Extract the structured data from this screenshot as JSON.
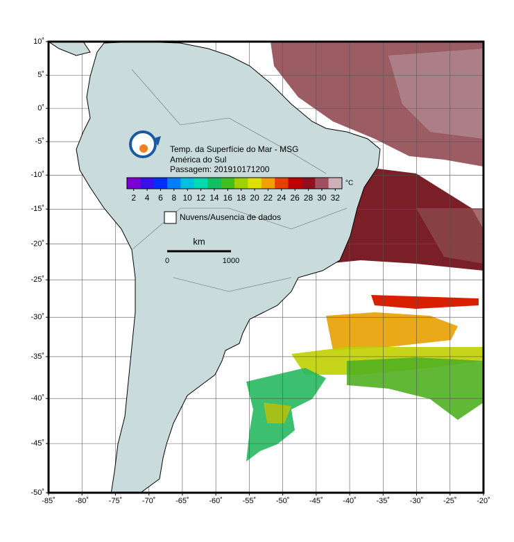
{
  "map": {
    "type": "map",
    "title_lines": [
      "Temp. da Superfície do Mar - MSG",
      "América do Sul",
      "Passagem: 201910171200"
    ],
    "xlim": [
      -85,
      -20
    ],
    "ylim": [
      -50,
      10
    ],
    "xticks": [
      {
        "value": -85,
        "label": "-85˚"
      },
      {
        "value": -80,
        "label": "-80˚"
      },
      {
        "value": -75,
        "label": "-75˚"
      },
      {
        "value": -70,
        "label": "-70˚"
      },
      {
        "value": -65,
        "label": "-65˚"
      },
      {
        "value": -60,
        "label": "-60˚"
      },
      {
        "value": -55,
        "label": "-55˚"
      },
      {
        "value": -50,
        "label": "-50˚"
      },
      {
        "value": -45,
        "label": "-45˚"
      },
      {
        "value": -40,
        "label": "-40˚"
      },
      {
        "value": -35,
        "label": "-35˚"
      },
      {
        "value": -30,
        "label": "-30˚"
      },
      {
        "value": -25,
        "label": "-25˚"
      },
      {
        "value": -20,
        "label": "-20˚"
      }
    ],
    "yticks": [
      {
        "value": 10,
        "label": "10˚"
      },
      {
        "value": 5,
        "label": "5˚"
      },
      {
        "value": 0,
        "label": "0˚"
      },
      {
        "value": -5,
        "label": "-5˚"
      },
      {
        "value": -10,
        "label": "-10˚"
      },
      {
        "value": -15,
        "label": "-15˚"
      },
      {
        "value": -20,
        "label": "-20˚"
      },
      {
        "value": -25,
        "label": "-25˚"
      },
      {
        "value": -30,
        "label": "-30˚"
      },
      {
        "value": -35,
        "label": "-35˚"
      },
      {
        "value": -40,
        "label": "-40˚"
      },
      {
        "value": -45,
        "label": "-45˚"
      },
      {
        "value": -50,
        "label": "-50˚"
      }
    ],
    "grid": true,
    "colorbar": {
      "lim": [
        1,
        33
      ],
      "ticks": [
        2,
        4,
        6,
        8,
        10,
        12,
        14,
        16,
        18,
        20,
        22,
        24,
        26,
        28,
        30,
        32
      ],
      "unit": "°C",
      "colors": [
        "#7a00d6",
        "#3a10e8",
        "#0030ff",
        "#0080ff",
        "#00c0e0",
        "#00d8b0",
        "#10c060",
        "#40c020",
        "#a0d000",
        "#e0e000",
        "#f0a000",
        "#e84000",
        "#c00000",
        "#901020",
        "#a05060",
        "#d0b0b8"
      ]
    },
    "legend": "Nuvens/Ausencia de dados",
    "scale": {
      "unit": "km",
      "labels": [
        "0",
        "1000"
      ]
    }
  }
}
